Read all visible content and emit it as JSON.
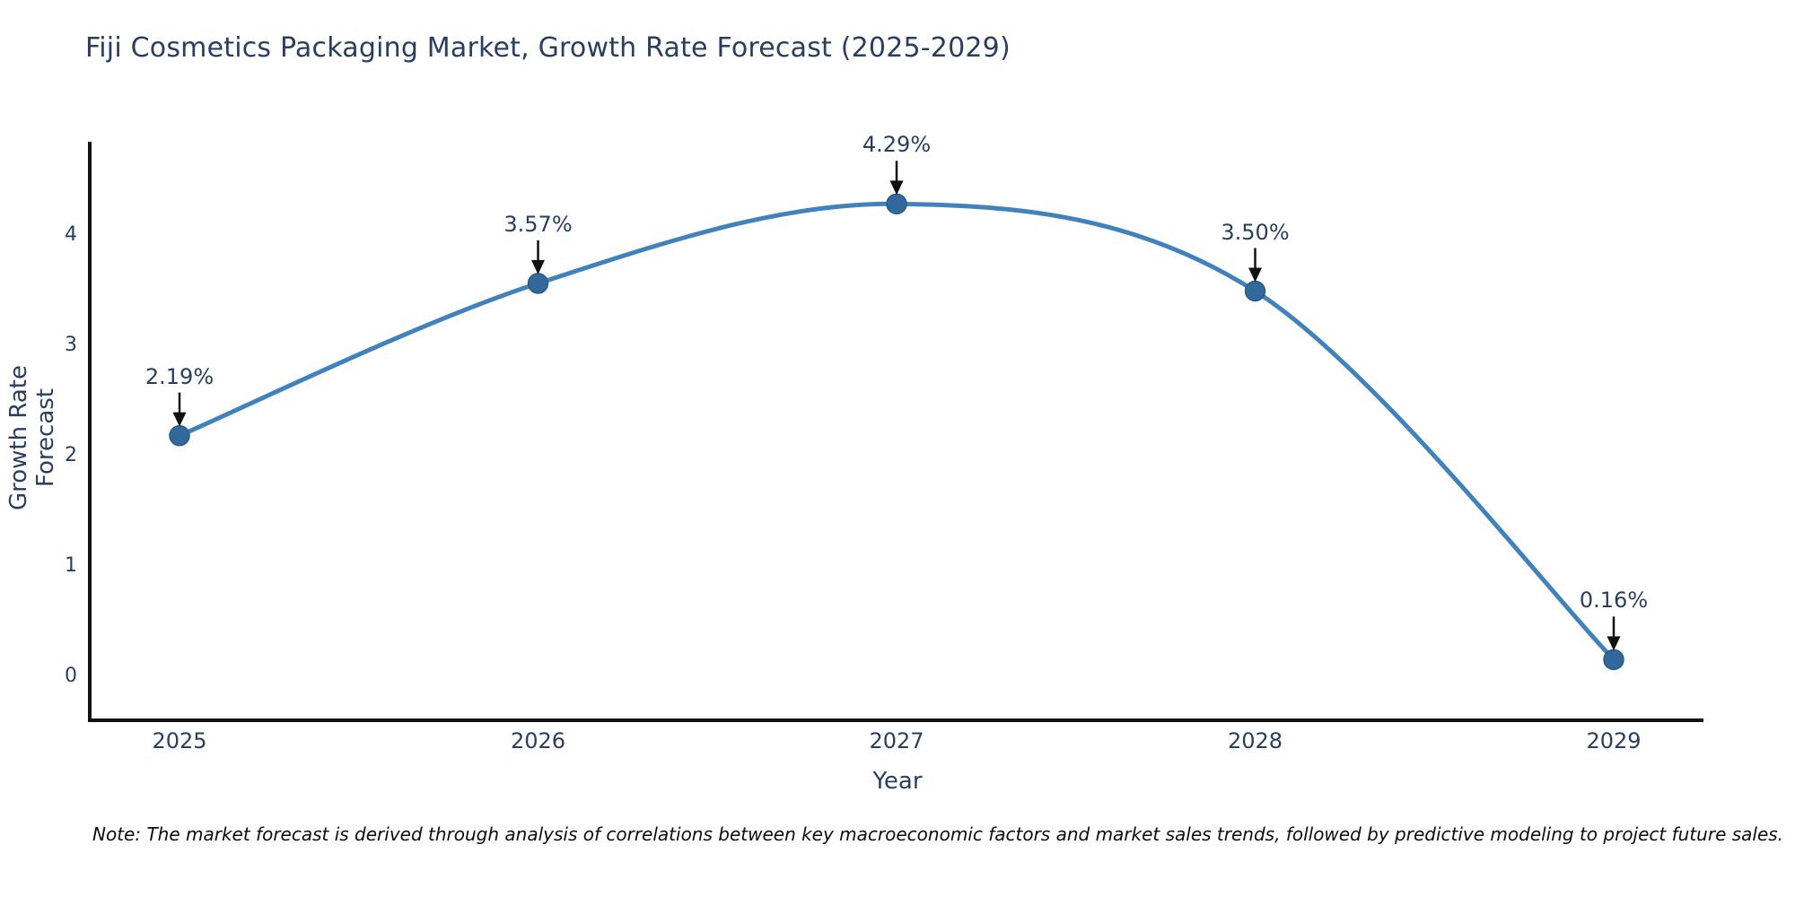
{
  "title": "Fiji Cosmetics Packaging Market, Growth Rate Forecast (2025-2029)",
  "note": "Note: The market forecast is derived through analysis of correlations between key macroeconomic factors and market sales trends, followed by predictive modeling to project future sales.",
  "chart_data": {
    "type": "line",
    "title": "Fiji Cosmetics Packaging Market, Growth Rate Forecast (2025-2029)",
    "x": [
      2025,
      2026,
      2027,
      2028,
      2029
    ],
    "values": [
      2.19,
      3.57,
      4.29,
      3.5,
      0.16
    ],
    "point_labels": [
      "2.19%",
      "3.57%",
      "4.29%",
      "3.50%",
      "0.16%"
    ],
    "xlabel": "Year",
    "ylabel": "Growth Rate Forecast",
    "yticks": [
      0,
      1,
      2,
      3,
      4
    ],
    "ylim": [
      -0.4,
      4.85
    ],
    "grid": false,
    "legend": false,
    "line_style": "smooth-spline",
    "colors": {
      "line": "#4182bd",
      "marker": "#31699d",
      "marker_edge": "#2a5b8a",
      "axis": "#111111",
      "text": "#2a3f5f",
      "arrow": "#111111"
    }
  }
}
